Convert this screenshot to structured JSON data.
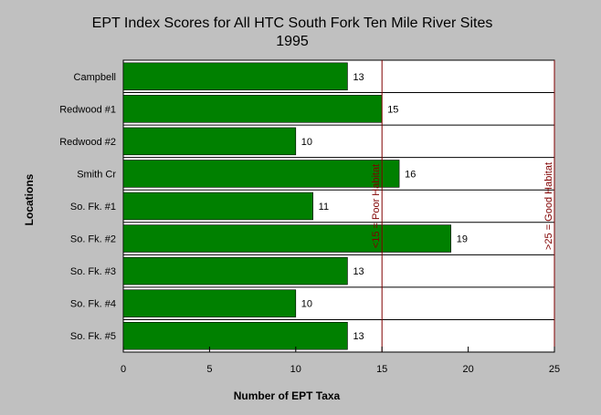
{
  "chart_data": {
    "type": "bar",
    "orientation": "horizontal",
    "title": "EPT Index Scores for All HTC South Fork Ten Mile River Sites",
    "subtitle": "1995",
    "xlabel": "Number of EPT Taxa",
    "ylabel": "Locations",
    "categories": [
      "Campbell",
      "Redwood #1",
      "Redwood #2",
      "Smith Cr",
      "So. Fk. #1",
      "So. Fk. #2",
      "So. Fk. #3",
      "So. Fk. #4",
      "So. Fk. #5"
    ],
    "values": [
      13,
      15,
      10,
      16,
      11,
      19,
      13,
      10,
      13
    ],
    "xlim": [
      0,
      25
    ],
    "xticks": [
      0,
      5,
      10,
      15,
      20,
      25
    ],
    "reference_lines": [
      {
        "value": 15,
        "label": "<15 = Poor Habitat"
      },
      {
        "value": 25,
        "label": ">25 = Good Habitat"
      }
    ],
    "grid": false,
    "colors": {
      "bar": "#008000",
      "background": "#c0c0c0",
      "plot_background": "#ffffff",
      "reference_line": "#800000"
    }
  }
}
